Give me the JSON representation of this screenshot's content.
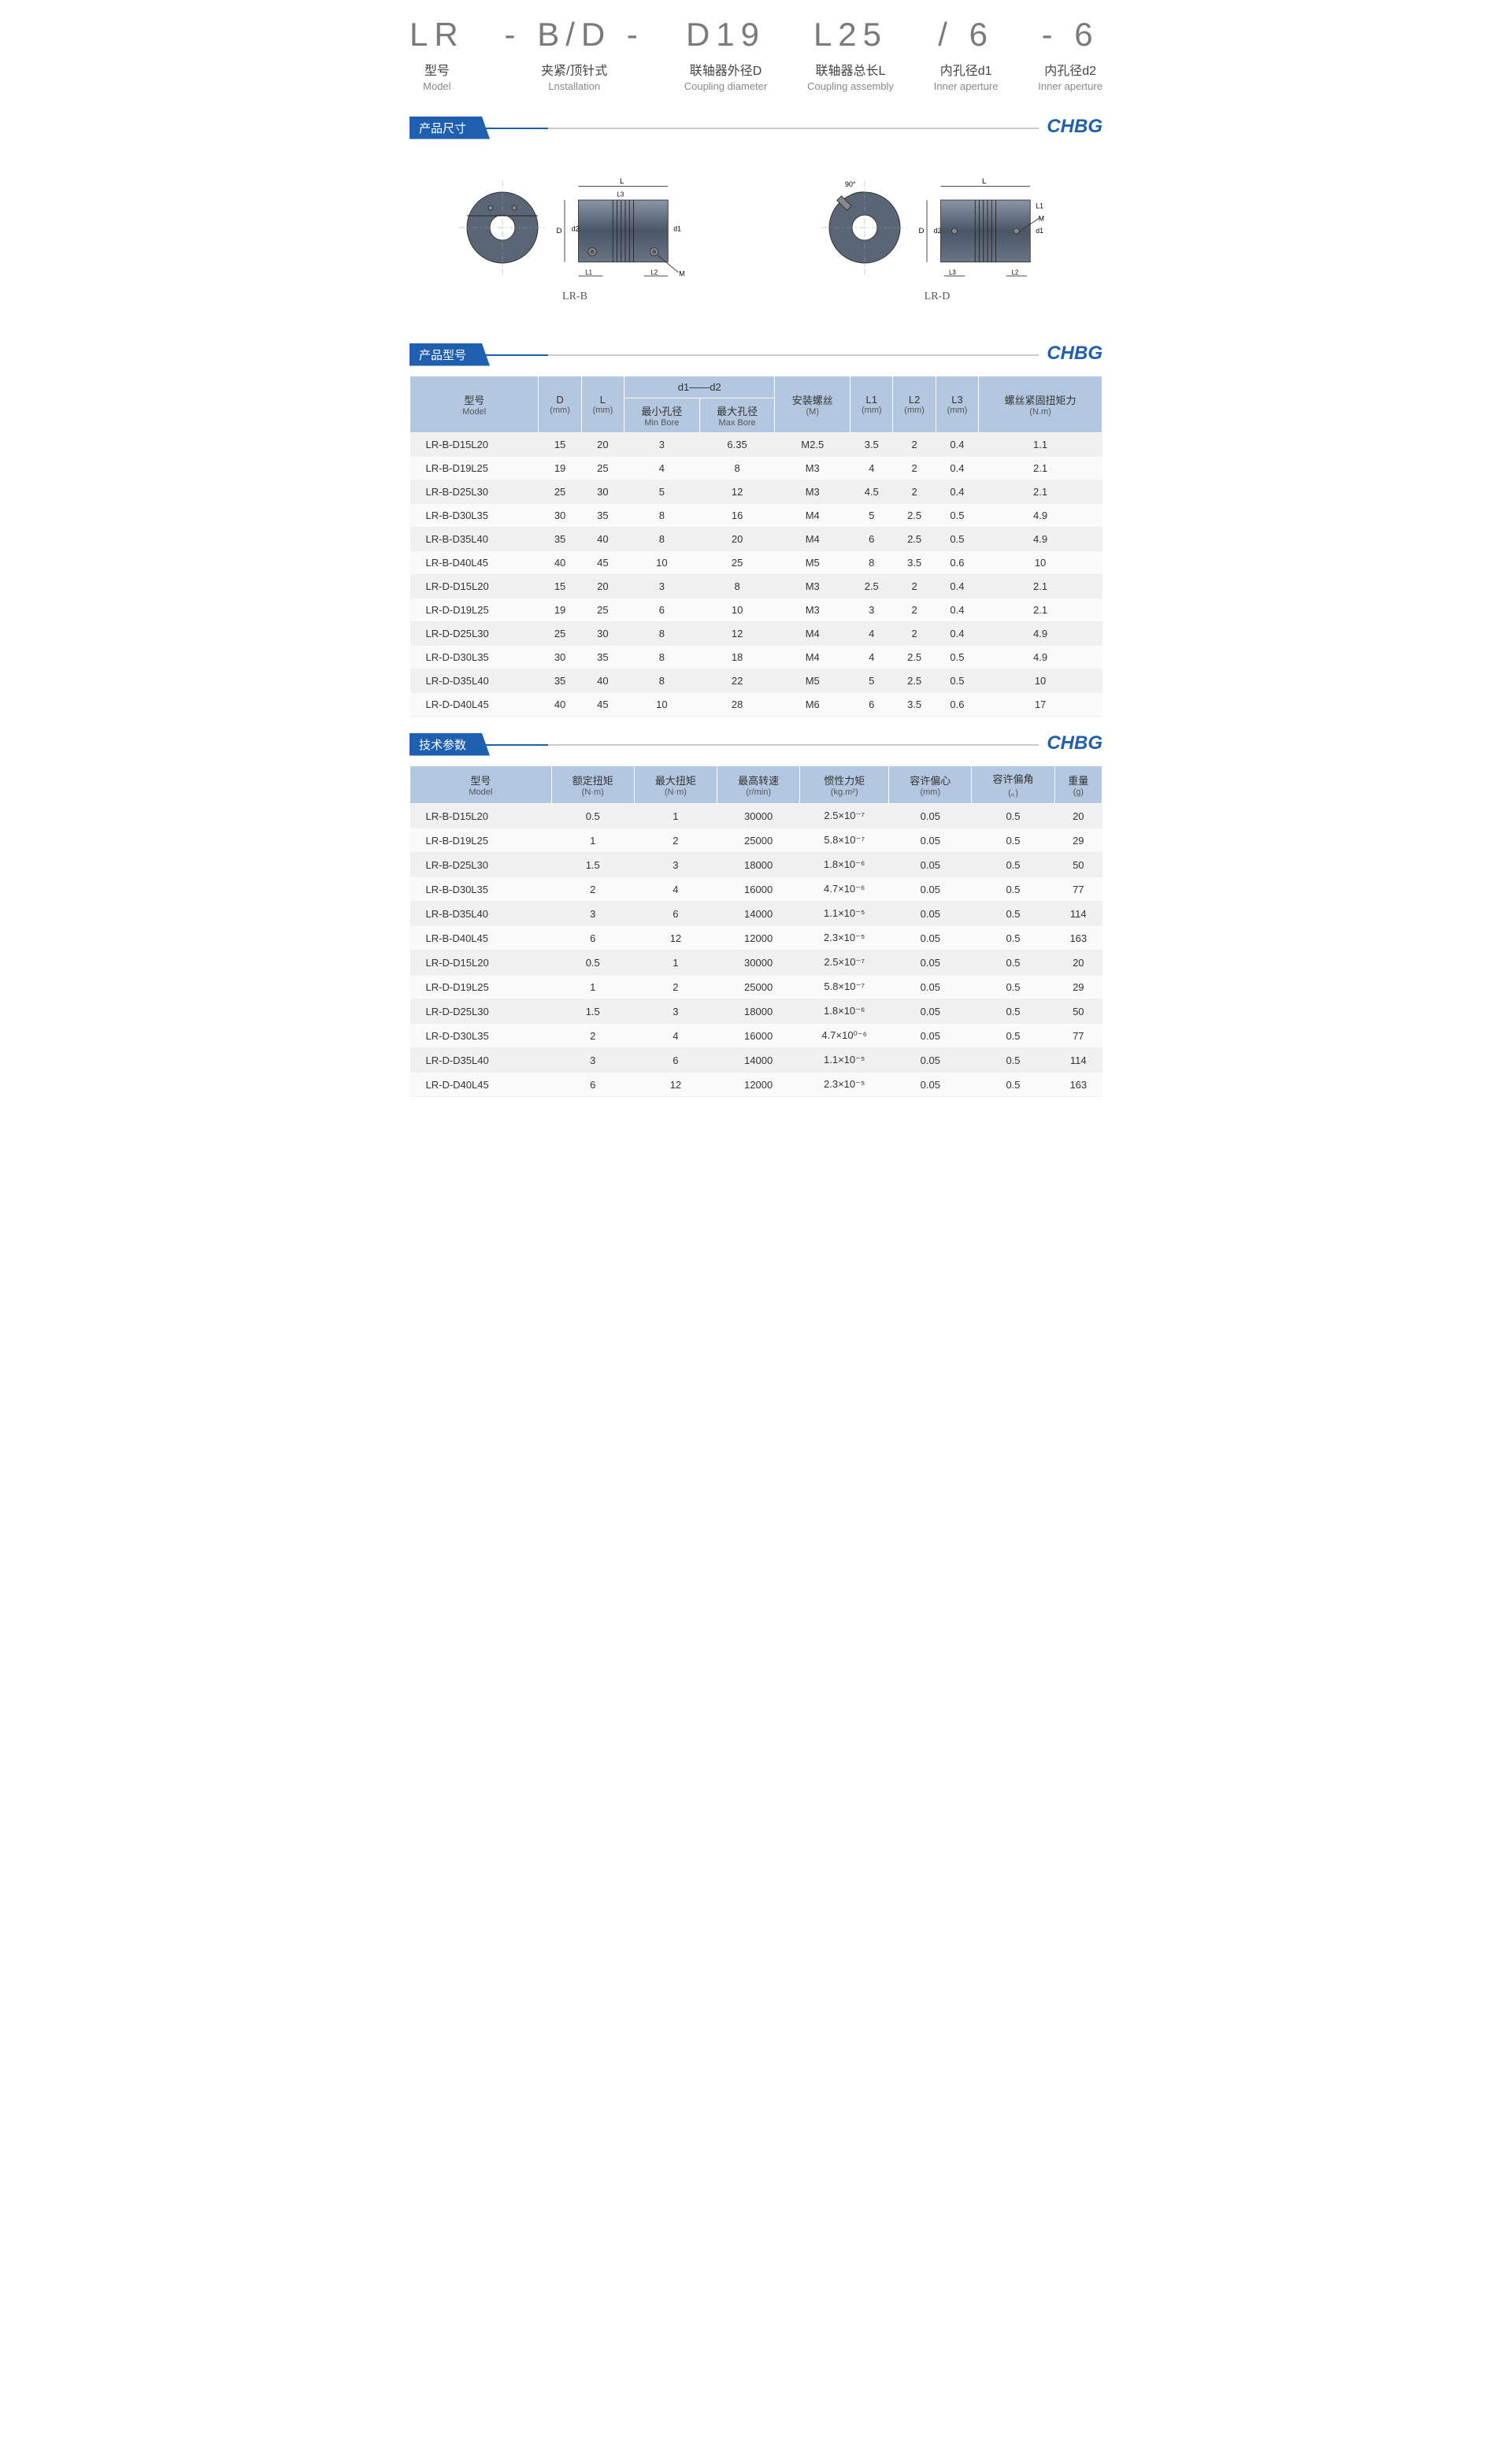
{
  "brand": "CHBG",
  "partHeader": [
    {
      "code": "LR",
      "cn": "型号",
      "en": "Model"
    },
    {
      "code": " - B/D - ",
      "cn": "夹紧/顶针式",
      "en": "Lnstallation"
    },
    {
      "code": "D19",
      "cn": "联轴器外径D",
      "en": "Coupling diameter"
    },
    {
      "code": "L25",
      "cn": "联轴器总长L",
      "en": "Coupling assembly"
    },
    {
      "code": "/ 6",
      "cn": "内孔径d1",
      "en": "Inner aperture"
    },
    {
      "code": " - 6",
      "cn": "内孔径d2",
      "en": "Inner aperture"
    }
  ],
  "sections": {
    "dim": "产品尺寸",
    "model": "产品型号",
    "tech": "技术参数"
  },
  "diagramLabels": {
    "lrb": "LR-B",
    "lrd": "LR-D"
  },
  "dimLabels": {
    "L": "L",
    "D": "D",
    "L1": "L1",
    "L2": "L2",
    "L3": "L3",
    "d1": "d1",
    "d2": "d2",
    "M": "M",
    "angle": "90°"
  },
  "modelTable": {
    "headers": {
      "model": {
        "cn": "型号",
        "en": "Model"
      },
      "D": "D\n(mm)",
      "L": "L\n(mm)",
      "d1d2": "d1——d2",
      "minBore": {
        "cn": "最小孔径",
        "en": "Min Bore"
      },
      "maxBore": {
        "cn": "最大孔径",
        "en": "Max Bore"
      },
      "screw": {
        "cn": "安装螺丝",
        "en": "(M)"
      },
      "L1": "L1\n(mm)",
      "L2": "L2\n(mm)",
      "L3": "L3\n(mm)",
      "torque": {
        "cn": "螺丝紧固扭矩力",
        "en": "(N.m)"
      }
    },
    "rows": [
      [
        "LR-B-D15L20",
        "15",
        "20",
        "3",
        "6.35",
        "M2.5",
        "3.5",
        "2",
        "0.4",
        "1.1"
      ],
      [
        "LR-B-D19L25",
        "19",
        "25",
        "4",
        "8",
        "M3",
        "4",
        "2",
        "0.4",
        "2.1"
      ],
      [
        "LR-B-D25L30",
        "25",
        "30",
        "5",
        "12",
        "M3",
        "4.5",
        "2",
        "0.4",
        "2.1"
      ],
      [
        "LR-B-D30L35",
        "30",
        "35",
        "8",
        "16",
        "M4",
        "5",
        "2.5",
        "0.5",
        "4.9"
      ],
      [
        "LR-B-D35L40",
        "35",
        "40",
        "8",
        "20",
        "M4",
        "6",
        "2.5",
        "0.5",
        "4.9"
      ],
      [
        "LR-B-D40L45",
        "40",
        "45",
        "10",
        "25",
        "M5",
        "8",
        "3.5",
        "0.6",
        "10"
      ],
      [
        "LR-D-D15L20",
        "15",
        "20",
        "3",
        "8",
        "M3",
        "2.5",
        "2",
        "0.4",
        "2.1"
      ],
      [
        "LR-D-D19L25",
        "19",
        "25",
        "6",
        "10",
        "M3",
        "3",
        "2",
        "0.4",
        "2.1"
      ],
      [
        "LR-D-D25L30",
        "25",
        "30",
        "8",
        "12",
        "M4",
        "4",
        "2",
        "0.4",
        "4.9"
      ],
      [
        "LR-D-D30L35",
        "30",
        "35",
        "8",
        "18",
        "M4",
        "4",
        "2.5",
        "0.5",
        "4.9"
      ],
      [
        "LR-D-D35L40",
        "35",
        "40",
        "8",
        "22",
        "M5",
        "5",
        "2.5",
        "0.5",
        "10"
      ],
      [
        "LR-D-D40L45",
        "40",
        "45",
        "10",
        "28",
        "M6",
        "6",
        "3.5",
        "0.6",
        "17"
      ]
    ]
  },
  "techTable": {
    "headers": {
      "model": {
        "cn": "型号",
        "en": "Model"
      },
      "rated": {
        "cn": "额定扭矩",
        "en": "(N·m)"
      },
      "max": {
        "cn": "最大扭矩",
        "en": "(N·m)"
      },
      "speed": {
        "cn": "最高转速",
        "en": "(r/min)"
      },
      "inertia": {
        "cn": "惯性力矩",
        "en": "(kg.m²)"
      },
      "ecc": {
        "cn": "容许偏心",
        "en": "(mm)"
      },
      "ang": {
        "cn": "容许偏角",
        "en": "(。)"
      },
      "weight": {
        "cn": "重量",
        "en": "(g)"
      }
    },
    "rows": [
      [
        "LR-B-D15L20",
        "0.5",
        "1",
        "30000",
        "2.5×10⁻⁷",
        "0.05",
        "0.5",
        "20"
      ],
      [
        "LR-B-D19L25",
        "1",
        "2",
        "25000",
        "5.8×10⁻⁷",
        "0.05",
        "0.5",
        "29"
      ],
      [
        "LR-B-D25L30",
        "1.5",
        "3",
        "18000",
        "1.8×10⁻⁶",
        "0.05",
        "0.5",
        "50"
      ],
      [
        "LR-B-D30L35",
        "2",
        "4",
        "16000",
        "4.7×10⁻⁶",
        "0.05",
        "0.5",
        "77"
      ],
      [
        "LR-B-D35L40",
        "3",
        "6",
        "14000",
        "1.1×10⁻⁵",
        "0.05",
        "0.5",
        "114"
      ],
      [
        "LR-B-D40L45",
        "6",
        "12",
        "12000",
        "2.3×10⁻⁵",
        "0.05",
        "0.5",
        "163"
      ],
      [
        "LR-D-D15L20",
        "0.5",
        "1",
        "30000",
        "2.5×10⁻⁷",
        "0.05",
        "0.5",
        "20"
      ],
      [
        "LR-D-D19L25",
        "1",
        "2",
        "25000",
        "5.8×10⁻⁷",
        "0.05",
        "0.5",
        "29"
      ],
      [
        "LR-D-D25L30",
        "1.5",
        "3",
        "18000",
        "1.8×10⁻⁶",
        "0.05",
        "0.5",
        "50"
      ],
      [
        "LR-D-D30L35",
        "2",
        "4",
        "16000",
        "4.7×10⁰⁻⁶",
        "0.05",
        "0.5",
        "77"
      ],
      [
        "LR-D-D35L40",
        "3",
        "6",
        "14000",
        "1.1×10⁻⁵",
        "0.05",
        "0.5",
        "114"
      ],
      [
        "LR-D-D40L45",
        "6",
        "12",
        "12000",
        "2.3×10⁻⁵",
        "0.05",
        "0.5",
        "163"
      ]
    ]
  },
  "colors": {
    "headerBg": "#b3c8e0",
    "accent": "#1e5fb0",
    "couplingFill": "#5a6675",
    "couplingStroke": "#333"
  }
}
